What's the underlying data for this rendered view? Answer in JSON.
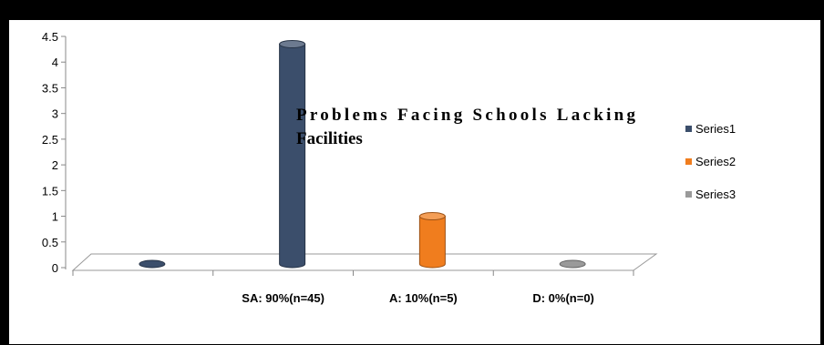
{
  "chart_data": {
    "type": "bar",
    "title": "Problems Facing Schools Lacking Facilities",
    "title_lines": [
      "Problems Facing Schools Lacking",
      "Facilities"
    ],
    "categories": [
      "",
      "SA: 90%(n=45)",
      "A: 10%(n=5)",
      "D: 0%(n=0)"
    ],
    "series": [
      {
        "name": "Series1",
        "color": "#3b4e6b",
        "values": [
          0,
          4.35,
          null,
          null
        ]
      },
      {
        "name": "Series2",
        "color": "#f07d1e",
        "values": [
          null,
          null,
          1.0,
          null
        ]
      },
      {
        "name": "Series3",
        "color": "#9a9a9a",
        "values": [
          null,
          null,
          null,
          0
        ]
      }
    ],
    "ylim": [
      0,
      4.5
    ],
    "yticks": [
      "0",
      "0.5",
      "1",
      "1.5",
      "2",
      "2.5",
      "3",
      "3.5",
      "4",
      "4.5"
    ],
    "xlabel": "",
    "ylabel": "",
    "grid": false,
    "legend_position": "right",
    "style": "3d-cylinder"
  }
}
